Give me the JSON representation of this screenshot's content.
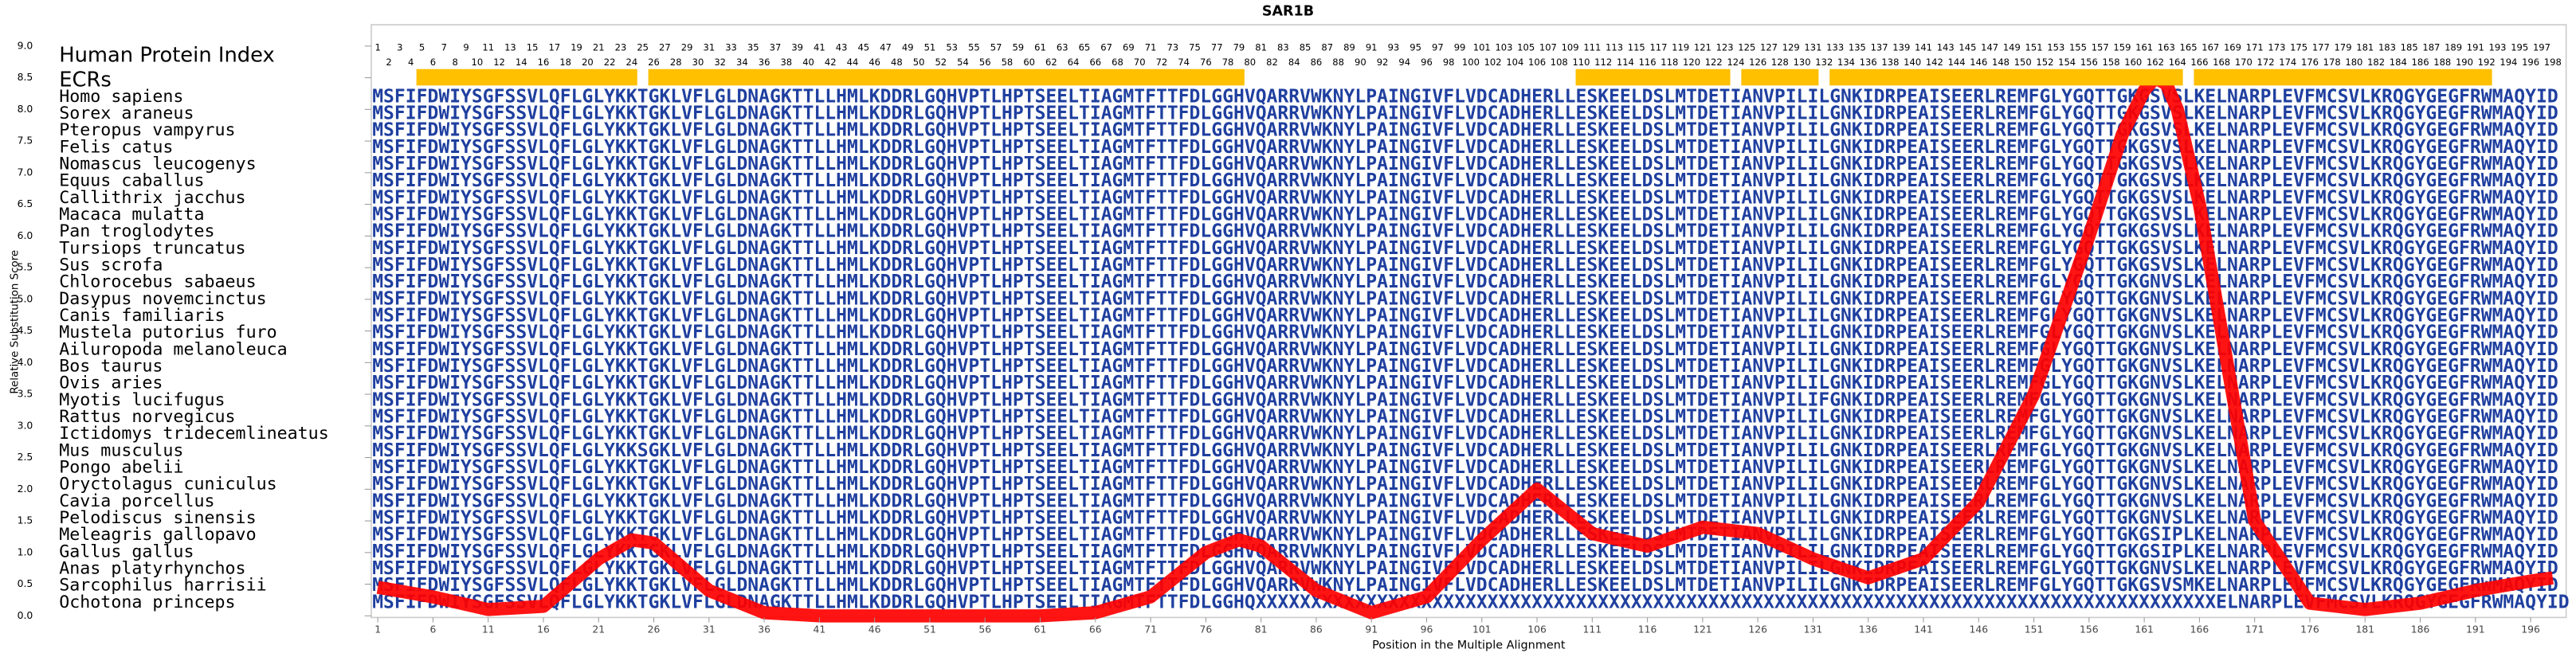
{
  "chart_data": {
    "type": "line",
    "title": "SAR1B",
    "xlabel": "Position in the Multiple Alignment",
    "ylabel": "Relative Substitution Score",
    "index_label": "Human Protein Index",
    "ecr_label": "ECRs",
    "color": "#ff0000",
    "ecr_color": "#ffc000",
    "sequence_color": "#1f3f9f",
    "xlim": [
      0.5,
      198.5
    ],
    "ylim": [
      0,
      9
    ],
    "yticks": [
      {
        "value": 0,
        "label": "0.0"
      },
      {
        "value": 0.5,
        "label": "0.5"
      },
      {
        "value": 1,
        "label": "1.0"
      },
      {
        "value": 1.5,
        "label": "1.5"
      },
      {
        "value": 2,
        "label": "2.0"
      },
      {
        "value": 2.5,
        "label": "2.5"
      },
      {
        "value": 3,
        "label": "3.0"
      },
      {
        "value": 3.5,
        "label": "3.5"
      },
      {
        "value": 4,
        "label": "4.0"
      },
      {
        "value": 4.5,
        "label": "4.5"
      },
      {
        "value": 5,
        "label": "5.0"
      },
      {
        "value": 5.5,
        "label": "5.5"
      },
      {
        "value": 6,
        "label": "6.0"
      },
      {
        "value": 6.5,
        "label": "6.5"
      },
      {
        "value": 7,
        "label": "7.0"
      },
      {
        "value": 7.5,
        "label": "7.5"
      },
      {
        "value": 8,
        "label": "8.0"
      },
      {
        "value": 8.5,
        "label": "8.5"
      },
      {
        "value": 9,
        "label": "9.0"
      }
    ],
    "xticks": [
      1,
      6,
      11,
      16,
      21,
      26,
      31,
      36,
      41,
      46,
      51,
      56,
      61,
      66,
      71,
      76,
      81,
      86,
      91,
      96,
      101,
      106,
      111,
      116,
      121,
      126,
      131,
      136,
      141,
      146,
      151,
      156,
      161,
      166,
      171,
      176,
      181,
      186,
      191,
      196
    ],
    "x": [
      1,
      6,
      11,
      16,
      21,
      24,
      26,
      31,
      36,
      41,
      46,
      51,
      56,
      61,
      66,
      71,
      76,
      79,
      81,
      86,
      91,
      96,
      101,
      106,
      111,
      116,
      121,
      126,
      131,
      136,
      141,
      146,
      151,
      156,
      159,
      161,
      162,
      163,
      164,
      166,
      168,
      171,
      176,
      181,
      186,
      191,
      196,
      198
    ],
    "values": [
      0.45,
      0.3,
      0.1,
      0.15,
      0.9,
      1.2,
      1.15,
      0.4,
      0.05,
      0,
      0,
      0,
      0,
      0,
      0.05,
      0.3,
      1.0,
      1.2,
      1.1,
      0.4,
      0.05,
      0.3,
      1.2,
      2.0,
      1.3,
      1.1,
      1.4,
      1.3,
      0.9,
      0.6,
      0.9,
      1.8,
      3.5,
      6.0,
      7.6,
      8.3,
      8.5,
      8.4,
      8.0,
      6.5,
      4.5,
      1.5,
      0.2,
      0.1,
      0.2,
      0.4,
      0.55,
      0.6
    ],
    "ecrs": [
      {
        "start": 5,
        "end": 24
      },
      {
        "start": 26,
        "end": 79
      },
      {
        "start": 110,
        "end": 123
      },
      {
        "start": 125,
        "end": 131
      },
      {
        "start": 133,
        "end": 164
      },
      {
        "start": 166,
        "end": 192
      }
    ],
    "human_index": [
      1,
      2,
      3,
      4,
      5,
      6,
      7,
      8,
      9,
      10,
      11,
      12,
      13,
      14,
      15,
      16,
      17,
      18,
      19,
      20,
      21,
      22,
      23,
      24,
      25,
      26,
      27,
      28,
      29,
      30,
      31,
      32,
      33,
      34,
      35,
      36,
      37,
      38,
      39,
      40,
      41,
      42,
      43,
      44,
      45,
      46,
      47,
      48,
      49,
      50,
      51,
      52,
      53,
      54,
      55,
      56,
      57,
      58,
      59,
      60,
      61,
      62,
      63,
      64,
      65,
      66,
      67,
      68,
      69,
      70,
      71,
      72,
      73,
      74,
      75,
      76,
      77,
      78,
      79,
      80,
      81,
      82,
      83,
      84,
      85,
      86,
      87,
      88,
      89,
      90,
      91,
      92,
      93,
      94,
      95,
      96,
      97,
      98,
      99,
      100,
      101,
      102,
      103,
      104,
      105,
      106,
      107,
      108,
      109,
      110,
      111,
      112,
      113,
      114,
      115,
      116,
      117,
      118,
      119,
      120,
      121,
      122,
      123,
      124,
      125,
      126,
      127,
      128,
      129,
      130,
      131,
      132,
      133,
      134,
      135,
      136,
      137,
      138,
      139,
      140,
      141,
      142,
      143,
      144,
      145,
      146,
      147,
      148,
      149,
      150,
      151,
      152,
      153,
      154,
      155,
      156,
      157,
      158,
      159,
      160,
      161,
      162,
      163,
      164,
      165,
      166,
      167,
      168,
      169,
      170,
      171,
      172,
      173,
      174,
      175,
      176,
      177,
      178,
      179,
      180,
      181,
      182,
      183,
      184,
      185,
      186,
      187,
      188,
      189,
      190,
      191,
      192,
      193,
      194,
      195,
      196,
      197,
      198
    ],
    "alignment": [
      {
        "species": "Homo sapiens",
        "sequence": "MSFIFDWIYSGFSSVLQFLGLYKKTGKLVFLGLDNAGKTTLLHMLKDDRLGQHVPTLHPTSEELTIAGMTFTTFDLGGHVQARRVWKNYLPAINGIVFLVDCADHERLLESKEELDSLMTDETIANVPILILGNKIDRPEAISEERLREMFGLYGQTTGKGSVSLKELNARPLEVFMCSVLKRQGYGEGFRWMAQYID"
      },
      {
        "species": "Sorex araneus",
        "sequence": "MSFIFDWIYSGFSSVLQFLGLYKKTGKLVFLGLDNAGKTTLLHMLKDDRLGQHVPTLHPTSEELTIAGMTFTTFDLGGHVQARRVWKNYLPAINGIVFLVDCADHERLLESKEELDSLMTDETIANVPILILGNKIDRPEAISEERLREMFGLYGQTTGKGSVSLKELNARPLEVFMCSVLKRQGYGEGFRWMAQYID"
      },
      {
        "species": "Pteropus vampyrus",
        "sequence": "MSFIFDWIYSGFSSVLQFLGLYKKTGKLVFLGLDNAGKTTLLHMLKDDRLGQHVPTLHPTSEELTIAGMTFTTFDLGGHVQARRVWKNYLPAINGIVFLVDCADHERLLESKEELDSLMTDETIANVPILILGNKIDRPEAISEERLREMFGLYGQTTGKGSVSLKELNARPLEVFMCSVLKRQGYGEGFRWMAQYID"
      },
      {
        "species": "Felis catus",
        "sequence": "MSFIFDWIYSGFSSVLQFLGLYKKTGKLVFLGLDNAGKTTLLHMLKDDRLGQHVPTLHPTSEELTIAGMTFTTFDLGGHVQARRVWKNYLPAINGIVFLVDCADHERLLESKEELDSLMTDETIANVPILILGNKIDRPEAISEERLREMFGLYGQTTGKGSVSLKELNARPLEVFMCSVLKRQGYGEGFRWMAQYID"
      },
      {
        "species": "Nomascus leucogenys",
        "sequence": "MSFIFDWIYSGFSSVLQFLGLYKKTGKLVFLGLDNAGKTTLLHMLKDDRLGQHVPTLHPTSEELTIAGMTFTTFDLGGHVQARRVWKNYLPAINGIVFLVDCADHERLLESKEELDSLMTDETIANVPILILGNKIDRPEAISEERLREMFGLYGQTTGKGSVSLKELNARPLEVFMCSVLKRQGYGEGFRWMAQYID"
      },
      {
        "species": "Equus caballus",
        "sequence": "MSFIFDWIYSGFSSVLQFLGLYKKTGKLVFLGLDNAGKTTLLHMLKDDRLGQHVPTLHPTSEELTIAGMTFTTFDLGGHVQARRVWKNYLPAINGIVFLVDCADHERLLESKEELDSLMTDETIANVPILILGNKIDRPEAISEERLREMFGLYGQTTGKGSVSLKELNARPLEVFMCSVLKRQGYGEGFRWMAQYID"
      },
      {
        "species": "Callithrix jacchus",
        "sequence": "MSFIFDWIYSGFSSVLQFLGLYKKTGKLVFLGLDNAGKTTLLHMLKDDRLGQHVPTLHPTSEELTIAGMTFTTFDLGGHVQARRVWKNYLPAINGIVFLVDCADHERLLESKEELDSLMTDETIANVPILILGNKIDRPEAISEERLREMFGLYGQTTGKGSVSLKELNARPLEVFMCSVLKRQGYGEGFRWMAQYID"
      },
      {
        "species": "Macaca mulatta",
        "sequence": "MSFIFDWIYSGFSSVLQFLGLYKKTGKLVFLGLDNAGKTTLLHMLKDDRLGQHVPTLHPTSEELTIAGMTFTTFDLGGHVQARRVWKNYLPAINGIVFLVDCADHERLLESKEELDSLMTDETIANVPILILGNKIDRPEAISEERLREMFGLYGQTTGKGSVSLKELNARPLEVFMCSVLKRQGYGEGFRWMAQYID"
      },
      {
        "species": "Pan troglodytes",
        "sequence": "MSFIFDWIYSGFSSVLQFLGLYKKTGKLVFLGLDNAGKTTLLHMLKDDRLGQHVPTLHPTSEELTIAGMTFTTFDLGGHVQARRVWKNYLPAINGIVFLVDCADHERLLESKEELDSLMTDETIANVPILILGNKIDRPEAISEERLREMFGLYGQTTGKGSVSLKELNARPLEVFMCSVLKRQGYGEGFRWMAQYID"
      },
      {
        "species": "Tursiops truncatus",
        "sequence": "MSFIFDWIYSGFSSVLQFLGLYKKTGKLVFLGLDNAGKTTLLHMLKDDRLGQHVPTLHPTSEELTIAGMTFTTFDLGGHVQARRVWKNYLPAINGIVFLVDCADHERLLESKEELDSLMTDETIANVPILILGNKIDRPEAISEERLREMFGLYGQTTGKGSVSLKELNARPLEVFMCSVLKRQGYGEGFRWMAQYID"
      },
      {
        "species": "Sus scrofa",
        "sequence": "MSFIFDWIYSGFSSVLQFLGLYKKTGKLVFLGLDNAGKTTLLHMLKDDRLGQHVPTLHPTSEELTIAGMTFTTFDLGGHVQARRVWKNYLPAINGIVFLVDCADHERLLESKEELDSLMTDETIANVPILILGNKIDRPEAISEERLREMFGLYGQTTGKGSVSLKELNARPLEVFMCSVLKRQGYGEGFRWMAQYID"
      },
      {
        "species": "Chlorocebus sabaeus",
        "sequence": "MSFIFDWIYSGFSSVLQFLGLYKKTGKLVFLGLDNAGKTTLLHMLKDDRLGQHVPTLHPTSEELTIAGMTFTTFDLGGHVQARRVWKNYLPAINGIVFLVDCADHERLLESKEELDSLMTDETIANVPILILGNKIDRPEAISEERLREMFGLYGQTTGKGNVSLKELNARPLEVFMCSVLKRQGYGEGFRWMAQYID"
      },
      {
        "species": "Dasypus novemcinctus",
        "sequence": "MSFIFDWIYSGFSSVLQFLGLYKKTGKLVFLGLDNAGKTTLLHMLKDDRLGQHVPTLHPTSEELTIAGMTFTTFDLGGHVQARRVWKNYLPAINGIVFLVDCADHERLLESKEELDSLMTDETIANVPILILGNKIDRPEAISEERLREMFGLYGQTTGKGNVSLKELNARPLEVFMCSVLKRQGYGEGFRWMAQYID"
      },
      {
        "species": "Canis familiaris",
        "sequence": "MSFIFDWIYSGFSSVLQFLGLYKKTGKLVFLGLDNAGKTTLLHMLKDDRLGQHVPTLHPTSEELTIAGMTFTTFDLGGHVQARRVWKNYLPAINGIVFLVDCADHERLLESKEELDSLMTDETIANVPILILGNKIDRPEAISEERLREMFGLYGQTTGKGNVSLKELNARPLEVFMCSVLKRQGYGEGFRWMAQYID"
      },
      {
        "species": "Mustela putorius furo",
        "sequence": "MSFIFDWIYSGFSSVLQFLGLYKKTGKLVFLGLDNAGKTTLLHMLKDDRLGQHVPTLHPTSEELTIAGMTFTTFDLGGHVQARRVWKNYLPAINGIVFLVDCADHERLLESKEELDSLMTDETIANVPILILGNKIDRPEAISEERLREMFGLYGQTTGKGNVSLKELNARPLEVFMCSVLKRQGYGEGFRWMAQYID"
      },
      {
        "species": "Ailuropoda melanoleuca",
        "sequence": "MSFIFDWIYSGFSSVLQFLGLYKKTGKLVFLGLDNAGKTTLLHMLKDDRLGQHVPTLHPTSEELTIAGMTFTTFDLGGHVQARRVWKNYLPAINGIVFLVDCADHERLLESKEELDSLMTDETIANVPILILGNKIDRPEAISEERLREMFGLYGQTTGKGNVSLKELNARPLEVFMCSVLKRQGYGEGFRWMAQYID"
      },
      {
        "species": "Bos taurus",
        "sequence": "MSFIFDWIYSGFSSVLQFLGLYKKTGKLVFLGLDNAGKTTLLHMLKDDRLGQHVPTLHPTSEELTIAGMTFTTFDLGGHVQARRVWKNYLPAINGIVFLVDCADHERLLESKEELDSLMTDETIANVPILILGNKIDRPEAISEERLREMFGLYGQTTGKGNVSLKELNARPLEVFMCSVLKRQGYGEGFRWMAQYID"
      },
      {
        "species": "Ovis aries",
        "sequence": "MSFIFDWIYSGFSSVLQFLGLYKKTGKLVFLGLDNAGKTTLLHMLKDDRLGQHVPTLHPTSEELTIAGMTFTTFDLGGHVQARRVWKNYLPAINGIVFLVDCADHERLLESKEELDSLMTDETIANVPILILGNKIDRPEAISEERLREMFGLYGQTTGKGNVSLKELNARPLEVFMCSVLKRQGYGEGFRWMAQYID"
      },
      {
        "species": "Myotis lucifugus",
        "sequence": "MSFIFDWIYSGFSSVLQFLGLYKKTGKLVFLGLDNAGKTTLLHMLKDDRLGQHVPTLHPTSEELTIAGMTFTTFDLGGHVQARRVWKNYLPAINGIVFLVDCADHERLLESKEELDSLMTDETIANVPILIFGNKIDRPEAISEERLREMFGLYGQTTGKGNVSLKELNARPLEVFMCSVLKRQGYGEGFRWMAQYID"
      },
      {
        "species": "Rattus norvegicus",
        "sequence": "MSFIFDWIYSGFSSVLQFLGLYKKTGKLVFLGLDNAGKTTLLHMLKDDRLGQHVPTLHPTSEELTIAGMTFTTFDLGGHVQARRVWKNYLPAINGIVFLVDCADHERLLESKEELDSLMTDETIANVPILILGNKIDRPEAISEERLREMFGLYGQTTGKGNVSLKELNARPLEVFMCSVLKRQGYGEGFRWMAQYID"
      },
      {
        "species": "Ictidomys tridecemlineatus",
        "sequence": "MSFIFDWIYSGFSSVLQFLGLYKKTGKLVFLGLDNAGKTTLLHMLKDDRLGQHVPTLHPTSEELTIAGMTFTTFDLGGHVQARRVWKNYLPAINGIVFLVDCADHERLLESKEELDSLMTDETIANVPILILGNKIDRPEAISEERLREMFGLYGQTTGKGNVSLKELNARPLEVFMCSVLKRQGYGEGFRWMAQYID"
      },
      {
        "species": "Mus musculus",
        "sequence": "MSFIFDWIYSGFSSVLQFLGLYKKSGKLVFLGLDNAGKTTLLHMLKDDRLGQHVPTLHPTSEELTIAGMTFTTFDLGGHVQARRVWKNYLPAINGIVFLVDCADHERLLESKEELDSLMTDETIANVPILILGNKIDRPEAISEERLREMFGLYGQTTGKGNVSLKELNARPLEVFMCSVLKRQGYGEGFRWMAQYID"
      },
      {
        "species": "Pongo abelii",
        "sequence": "MSFIFDWIYSGFSSVLQFLGLYKKTGKLVFLGLDNAGKTTLLHMLKDDRLGQHVPTLHPTSEELTIAGMTFTTFDLGGHVQARRVWKNYLPAINGIVFLVDCADHERLLESKEELDSLMTDETIANVPILILGNKIDRPEAISEERLREMFGLYGQTTGKGNVSLKELNARPLEVFMCSVLKRQGYGEGFRWMAQYID"
      },
      {
        "species": "Oryctolagus cuniculus",
        "sequence": "MSFIFDWIYSGFSSVLQFLGLYKKTGKLVFLGLDNAGKTTLLHMLKDDRLGQHVPTLHPTSEELTIAGMTFTTFDLGGHVQARRVWKNYLPAINGIVFLVDCADHERLLESKEELDSLMTDETIANVPILILGNKIDRPEAISEERLREMFGLYGQTTGKGNVSLKELNARPLEVFMCSVLKRQGYGEGFRWMAQYID"
      },
      {
        "species": "Cavia porcellus",
        "sequence": "MSFIFDWIYSGFSSVLQFLGLYKKTGKLVFLGLDNAGKTTLLHMLKDDRLGQHVPTLHPTSEELTIAGMTFTTFDLGGHVQARRVWKNYLPAINGIVFLVDCADHERLLESKEELDSLMTDETIANVPILILGNKIDRPEAISEERLREMFGLYGQTTGKGNVSLKELNARPLEVFMCSVLKRQGYGEGFRWMAQYID"
      },
      {
        "species": "Pelodiscus sinensis",
        "sequence": "MSFIFDWIYSGFSSVLQFLGLYKKTGKLVFLGLDNAGKTTLLHMLKDDRLGQHVPTLHPTSEELTIAGMTFTTFDLGGHVQARRVWKNYLPAINGIVFLVDCADHERLLESKEELDSLMTDETIANVPILILGNKIDRPEAISEERLREMFGLYGQTTGKGNVSLKELNARPLEVFMCSVLKRQGYGEGFRWMAQYID"
      },
      {
        "species": "Meleagris gallopavo",
        "sequence": "MSFIFDWIYSGFSSVLQFLGLYKKTGKLVFLGLDNAGKTTLLHMLKDDRLGQHVPTLHPTSEELTIAGMTFTTFDLGGHVQARRVWKNYLPAINGIVFLVDCADHERLLESKEELDSLMTDETIANVPILILGNKIDRPEAISEERLREMFGLYGQTTGKGSIPLKELNARPLEVFMCSVLKRQGYGEGFRWMAQYID"
      },
      {
        "species": "Gallus gallus",
        "sequence": "MSFIFDWIYSGFSSVLQFLGLYKKTGKLVFLGLDNAGKTTLLHMLKDDRLGQHVPTLHPTSEELTIAGMTFTTFDLGGHVQARRVWKNYLPAINGIVFLVDCADHERLLESKEELDSLMTDETIANVPILILGNKIDRPEAISEERLREMFGLYGQTTGKGSIPLKELNARPLEVFMCSVLKRQGYGEGFRWMAQYID"
      },
      {
        "species": "Anas platyrhynchos",
        "sequence": "MSFIFDWIYSGFSSVLQFLGLYKKTGKLVFLGLDNAGKTTLLHMLKDDRLGQHVPTLHPTSEELTIAGMTFTTFDLGGHVQARRVWKNYLPAINGIVFLVDCADHERLLESKEELDSLMTDETIANVPILILGNKIDRPEAISEERLREMFGLYGQTTGKGNVSLKELNARPLEVFMCSVLKRQGYGEGFRWMAQYID"
      },
      {
        "species": "Sarcophilus harrisii",
        "sequence": "MSFIFDWIYSGFSSVLQFLGLYKKTGKLVFLGLDNAGKTTLLHMLKDDRLGQHVPTLHPTSEELTIAGMTFTTFDLGGHVQARRVWKNYLPAINGIVFLVDCADHERLLESKEELDSLMTDETIANVPILILGNKIDRPEAISEERLREMFGLYGQTTGKGSVSMKELNARPLEVFMCSVLKRQGYGEGFRWMAQYID"
      },
      {
        "species": "Ochotona princeps",
        "sequence": "MSFIFDWIYSGFSSVLQFLGLYKKTGKLVFLGLDNAGKTTLLHMLKDDRLGQHVPTLHPTSEELTIAGMTFTTFDLGGHQXXXXXXXXXXXXXXXXXXXXXXXXXXXXXXXXXXXXXXXXXXXXXXXXXXXXXXXXXXXXXXXXXXXXXXXXXXXXXXXXXXXXXXXELNARPLEVFMCSVLKRQGYGEGFRWMAQYID"
      }
    ]
  }
}
